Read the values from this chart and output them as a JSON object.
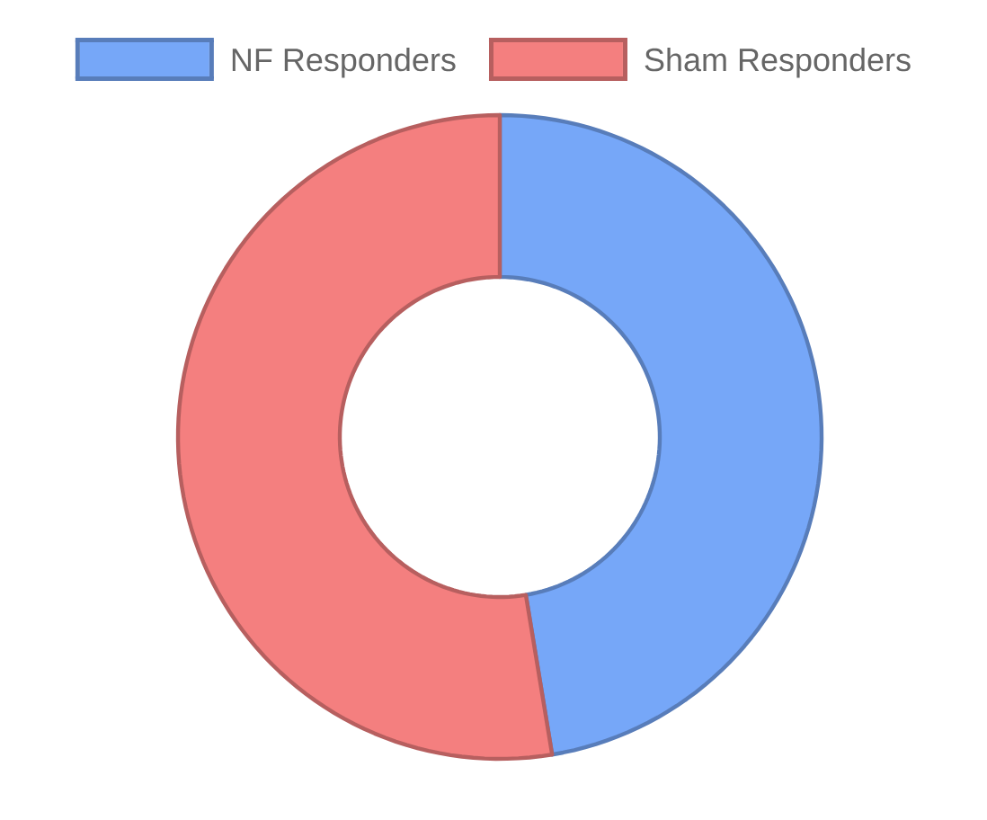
{
  "chart_data": {
    "type": "donut",
    "categories": [
      "NF Responders",
      "Sham Responders"
    ],
    "values": [
      47.4,
      52.6
    ],
    "colors": [
      "#76a7f8",
      "#f47f7f"
    ],
    "legend": "top"
  }
}
